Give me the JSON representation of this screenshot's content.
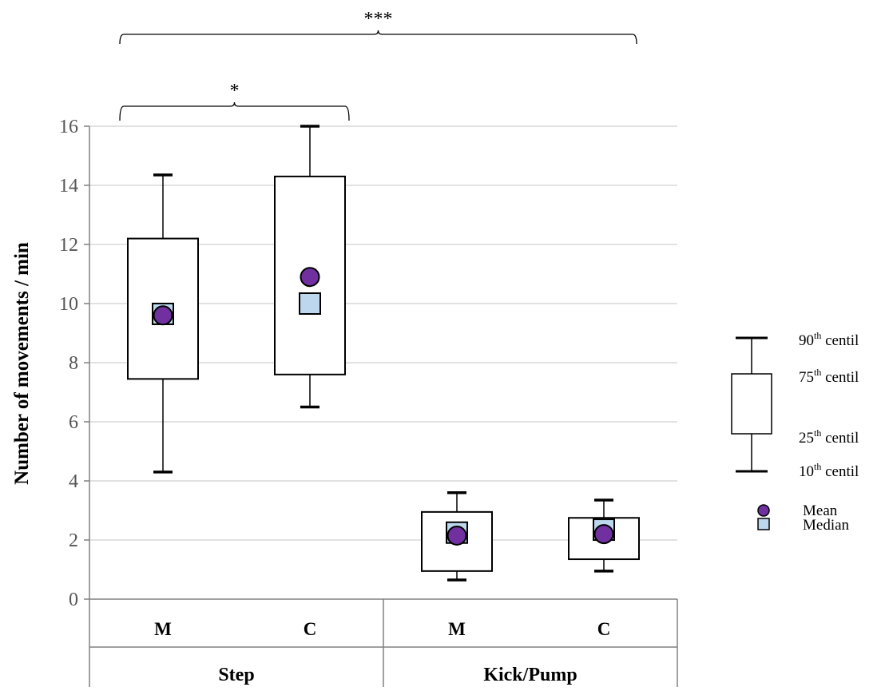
{
  "chart_data": {
    "type": "box",
    "ylabel": "Number of movements / min",
    "ylim": [
      0,
      16
    ],
    "yticks": [
      0,
      2,
      4,
      6,
      8,
      10,
      12,
      14,
      16
    ],
    "grid": true,
    "groups": [
      {
        "label": "Step",
        "categories": [
          "M",
          "C"
        ]
      },
      {
        "label": "Kick/Pump",
        "categories": [
          "M",
          "C"
        ]
      }
    ],
    "boxes": [
      {
        "group": "Step",
        "category": "M",
        "p10": 4.3,
        "p25": 7.45,
        "p75": 12.2,
        "p90": 14.35,
        "mean": 9.6,
        "median": 9.65
      },
      {
        "group": "Step",
        "category": "C",
        "p10": 6.5,
        "p25": 7.6,
        "p75": 14.3,
        "p90": 16.0,
        "mean": 10.9,
        "median": 10.0
      },
      {
        "group": "Kick/Pump",
        "category": "M",
        "p10": 0.65,
        "p25": 0.95,
        "p75": 2.95,
        "p90": 3.6,
        "mean": 2.15,
        "median": 2.25
      },
      {
        "group": "Kick/Pump",
        "category": "C",
        "p10": 0.95,
        "p25": 1.35,
        "p75": 2.75,
        "p90": 3.35,
        "mean": 2.2,
        "median": 2.35
      }
    ],
    "significance": [
      {
        "label": "*",
        "from": "Step M",
        "to": "Step C"
      },
      {
        "label": "***",
        "from": "Step M",
        "to": "Kick/Pump C"
      }
    ],
    "legend": {
      "position": "right",
      "p90": "90",
      "p75": "75",
      "p25": "25",
      "p10": "10",
      "suffix": "th",
      "word": "centil",
      "mean": "Mean",
      "median": "Median"
    }
  },
  "colors": {
    "mean_fill": "#7030a0",
    "median_fill": "#bdd7ee",
    "grid": "#d9d9d9",
    "axis": "#808080"
  }
}
